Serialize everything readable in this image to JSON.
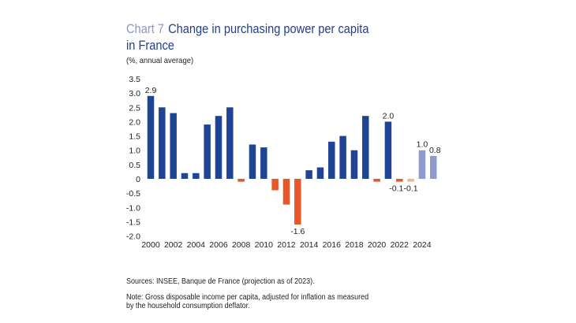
{
  "header": {
    "chart_number": "Chart 7",
    "title_line1": "Change in purchasing power per capita",
    "title_line2": "in France",
    "unit": "(%, annual average)"
  },
  "footer": {
    "sources": "Sources: INSEE, Banque de France (projection as of 2023).",
    "note_line1": "Note: Gross disposable income per capita, adjusted for inflation as measured",
    "note_line2": "by the household consumption deflator."
  },
  "colors": {
    "positive": "#1f4494",
    "negative": "#e8572a",
    "projection_positive": "#8f9bcf",
    "projection_negative": "#f4b38a"
  },
  "chart_data": {
    "type": "bar",
    "categories": [
      "2000",
      "2001",
      "2002",
      "2003",
      "2004",
      "2005",
      "2006",
      "2007",
      "2008",
      "2009",
      "2010",
      "2011",
      "2012",
      "2013",
      "2014",
      "2015",
      "2016",
      "2017",
      "2018",
      "2019",
      "2020",
      "2021",
      "2022",
      "2023",
      "2024",
      "2025"
    ],
    "values": [
      2.9,
      2.5,
      2.3,
      0.2,
      0.2,
      1.9,
      2.2,
      2.5,
      -0.1,
      1.2,
      1.1,
      -0.4,
      -0.9,
      -1.6,
      0.3,
      0.4,
      1.3,
      1.5,
      1.0,
      2.2,
      -0.1,
      2.0,
      -0.1,
      -0.1,
      1.0,
      0.8
    ],
    "projection": [
      false,
      false,
      false,
      false,
      false,
      false,
      false,
      false,
      false,
      false,
      false,
      false,
      false,
      false,
      false,
      false,
      false,
      false,
      false,
      false,
      false,
      false,
      false,
      true,
      true,
      true
    ],
    "x_tick_labels": [
      "2000",
      "2002",
      "2004",
      "2006",
      "2008",
      "2010",
      "2012",
      "2014",
      "2016",
      "2018",
      "2020",
      "2022",
      "2024"
    ],
    "y_tick_labels": [
      "3.5",
      "3.0",
      "2.5",
      "2.0",
      "1.5",
      "1.0",
      "0.5",
      "0",
      "-0.5",
      "-1.0",
      "-1.5",
      "-2.0"
    ],
    "ylim": [
      -2.0,
      3.5
    ],
    "data_labels": [
      {
        "category": "2000",
        "text": "2.9"
      },
      {
        "category": "2013",
        "text": "-1.6"
      },
      {
        "category": "2021",
        "text": "2.0"
      },
      {
        "category": "2022",
        "text": "-0.1"
      },
      {
        "category": "2023",
        "text": "-0.1"
      },
      {
        "category": "2024",
        "text": "1.0"
      },
      {
        "category": "2025",
        "text": "0.8"
      }
    ],
    "grid": false,
    "legend": "none",
    "xlabel": "",
    "ylabel": ""
  }
}
